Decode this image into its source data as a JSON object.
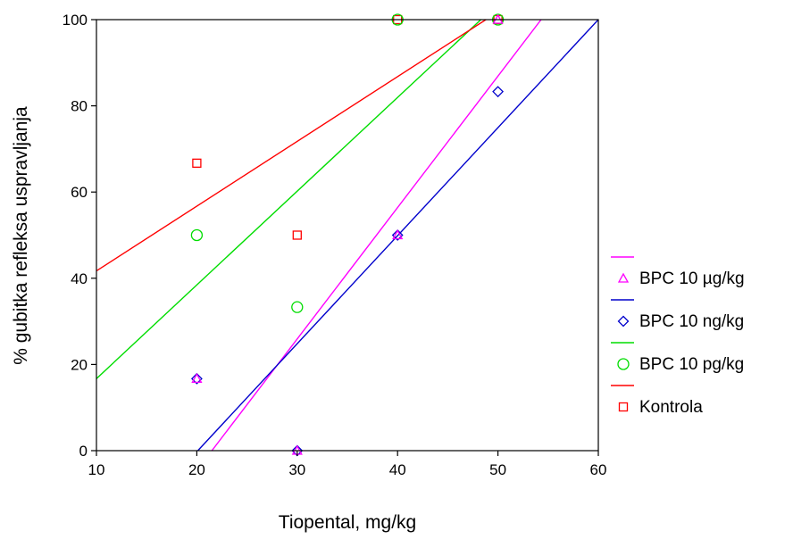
{
  "chart_data": {
    "type": "scatter",
    "xlabel": "Tiopental, mg/kg",
    "ylabel": "% gubitka refleksa uspravljanja",
    "xlim": [
      10,
      60
    ],
    "ylim": [
      0,
      100
    ],
    "x_ticks": [
      "10",
      "20",
      "30",
      "40",
      "50",
      "60"
    ],
    "y_ticks": [
      "0",
      "20",
      "40",
      "60",
      "80",
      "100"
    ],
    "grid": false,
    "legend_position": "right",
    "series": [
      {
        "name": "BPC 10 µg/kg",
        "marker": "triangle",
        "color": "#ff00ff",
        "points": [
          [
            20,
            16.7
          ],
          [
            30,
            0
          ],
          [
            40,
            50
          ],
          [
            50,
            100
          ]
        ],
        "fit_line": [
          [
            21.5,
            0
          ],
          [
            54.3,
            100
          ]
        ]
      },
      {
        "name": "BPC 10 ng/kg",
        "marker": "diamond",
        "color": "#0000cc",
        "points": [
          [
            20,
            16.7
          ],
          [
            30,
            0
          ],
          [
            40,
            50
          ],
          [
            50,
            83.3
          ]
        ],
        "fit_line": [
          [
            20.1,
            0
          ],
          [
            60,
            100
          ]
        ]
      },
      {
        "name": "BPC 10 pg/kg",
        "marker": "circle",
        "color": "#00dd00",
        "points": [
          [
            20,
            50
          ],
          [
            30,
            33.3
          ],
          [
            40,
            100
          ],
          [
            50,
            100
          ]
        ],
        "fit_line": [
          [
            10,
            16.7
          ],
          [
            48.3,
            100
          ]
        ]
      },
      {
        "name": "Kontrola",
        "marker": "square",
        "color": "#ff0000",
        "points": [
          [
            20,
            66.7
          ],
          [
            30,
            50
          ],
          [
            40,
            100
          ],
          [
            50,
            100
          ]
        ],
        "fit_line": [
          [
            10,
            41.7
          ],
          [
            48.8,
            100
          ]
        ]
      }
    ]
  }
}
